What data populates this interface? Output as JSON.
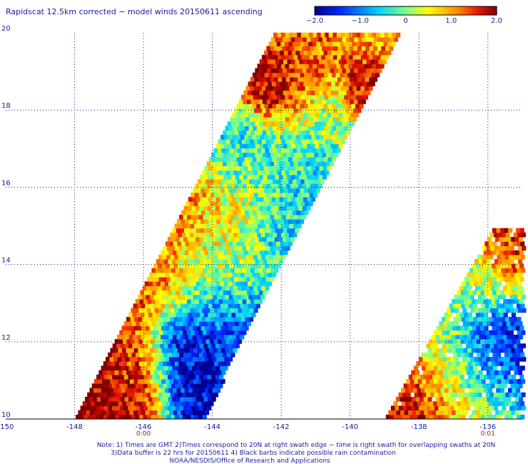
{
  "chart_data": {
    "type": "heatmap",
    "title": "Rapidscat 12.5km corrected − model winds 20150611 ascending",
    "colorbar": {
      "vmin": -2.0,
      "vmax": 2.0,
      "tick_values": [
        -2.0,
        -1.0,
        0,
        1.0,
        2.0
      ],
      "tick_labels": [
        "−2.0",
        "−1.0",
        "0",
        "1.0",
        "2.0"
      ]
    },
    "x_ticks": [
      {
        "value": -150,
        "label": "-150"
      },
      {
        "value": -148,
        "label": "-148"
      },
      {
        "value": -146,
        "label": "-146"
      },
      {
        "value": -144,
        "label": "-144"
      },
      {
        "value": -142,
        "label": "-142"
      },
      {
        "value": -140,
        "label": "-140"
      },
      {
        "value": -138,
        "label": "-138"
      },
      {
        "value": -136,
        "label": "-136"
      }
    ],
    "y_ticks": [
      {
        "value": 10,
        "label": "10"
      },
      {
        "value": 12,
        "label": "12"
      },
      {
        "value": 14,
        "label": "14"
      },
      {
        "value": 16,
        "label": "16"
      },
      {
        "value": 18,
        "label": "18"
      },
      {
        "value": 20,
        "label": "20"
      }
    ],
    "xlim": [
      -150,
      -135
    ],
    "ylim": [
      10,
      20
    ],
    "grid": true,
    "grid_style": "dotted",
    "swath_times": [
      {
        "label": "0:00",
        "lon": -146
      },
      {
        "label": "0:01",
        "lon": -136
      }
    ],
    "swaths": [
      {
        "west_edge": [
          [
            -148.0,
            10
          ],
          [
            -142.2,
            20
          ]
        ],
        "east_edge": [
          [
            -144.3,
            10
          ],
          [
            -138.6,
            20
          ]
        ]
      },
      {
        "west_edge": [
          [
            -139.0,
            10
          ],
          [
            -135.8,
            15.0
          ]
        ],
        "east_edge": [
          [
            -135,
            10
          ],
          [
            -135,
            15.0
          ]
        ]
      }
    ],
    "patches": [
      {
        "lon": -147.3,
        "lat": 10.5,
        "value": 2.0,
        "radius": 1.0
      },
      {
        "lon": -146.4,
        "lat": 11.6,
        "value": 1.5,
        "radius": 0.9
      },
      {
        "lon": -144.6,
        "lat": 11.8,
        "value": -1.8,
        "radius": 1.0
      },
      {
        "lon": -143.5,
        "lat": 12.4,
        "value": -1.2,
        "radius": 1.0
      },
      {
        "lon": -145.8,
        "lat": 13.6,
        "value": 1.3,
        "radius": 1.0
      },
      {
        "lon": -144.0,
        "lat": 13.8,
        "value": 0.2,
        "radius": 1.2
      },
      {
        "lon": -144.8,
        "lat": 15.6,
        "value": 1.4,
        "radius": 1.0
      },
      {
        "lon": -143.4,
        "lat": 15.3,
        "value": 0.4,
        "radius": 1.2
      },
      {
        "lon": -142.0,
        "lat": 14.8,
        "value": -0.6,
        "radius": 0.8
      },
      {
        "lon": -143.2,
        "lat": 16.9,
        "value": -0.4,
        "radius": 1.0
      },
      {
        "lon": -141.2,
        "lat": 16.6,
        "value": -0.5,
        "radius": 1.0
      },
      {
        "lon": -142.1,
        "lat": 18.6,
        "value": 2.0,
        "radius": 0.8
      },
      {
        "lon": -141.6,
        "lat": 19.4,
        "value": 1.3,
        "radius": 0.8
      },
      {
        "lon": -139.3,
        "lat": 18.7,
        "value": 2.0,
        "radius": 0.8
      },
      {
        "lon": -140.8,
        "lat": 17.7,
        "value": 0.3,
        "radius": 1.0
      },
      {
        "lon": -139.3,
        "lat": 19.6,
        "value": 0.8,
        "radius": 0.8
      },
      {
        "lon": -138.4,
        "lat": 10.5,
        "value": 1.8,
        "radius": 0.9
      },
      {
        "lon": -137.2,
        "lat": 11.3,
        "value": 0.6,
        "radius": 1.0
      },
      {
        "lon": -136.2,
        "lat": 11.7,
        "value": -1.0,
        "radius": 0.8
      },
      {
        "lon": -135.5,
        "lat": 12.3,
        "value": -1.6,
        "radius": 0.8
      },
      {
        "lon": -136.1,
        "lat": 13.4,
        "value": 0.2,
        "radius": 0.9
      },
      {
        "lon": -135.3,
        "lat": 14.2,
        "value": 1.6,
        "radius": 0.8
      }
    ],
    "notes": [
      "Note: 1) Times are GMT 2)Times correspond to 20N at right swath edge − time is right swath for overlapping swaths at 20N",
      "3)Data buffer is 22 hrs for 20150611 4) Black barbs indicate possible rain contamination",
      "NOAA/NESDIS/Office of Research and Applications"
    ]
  }
}
